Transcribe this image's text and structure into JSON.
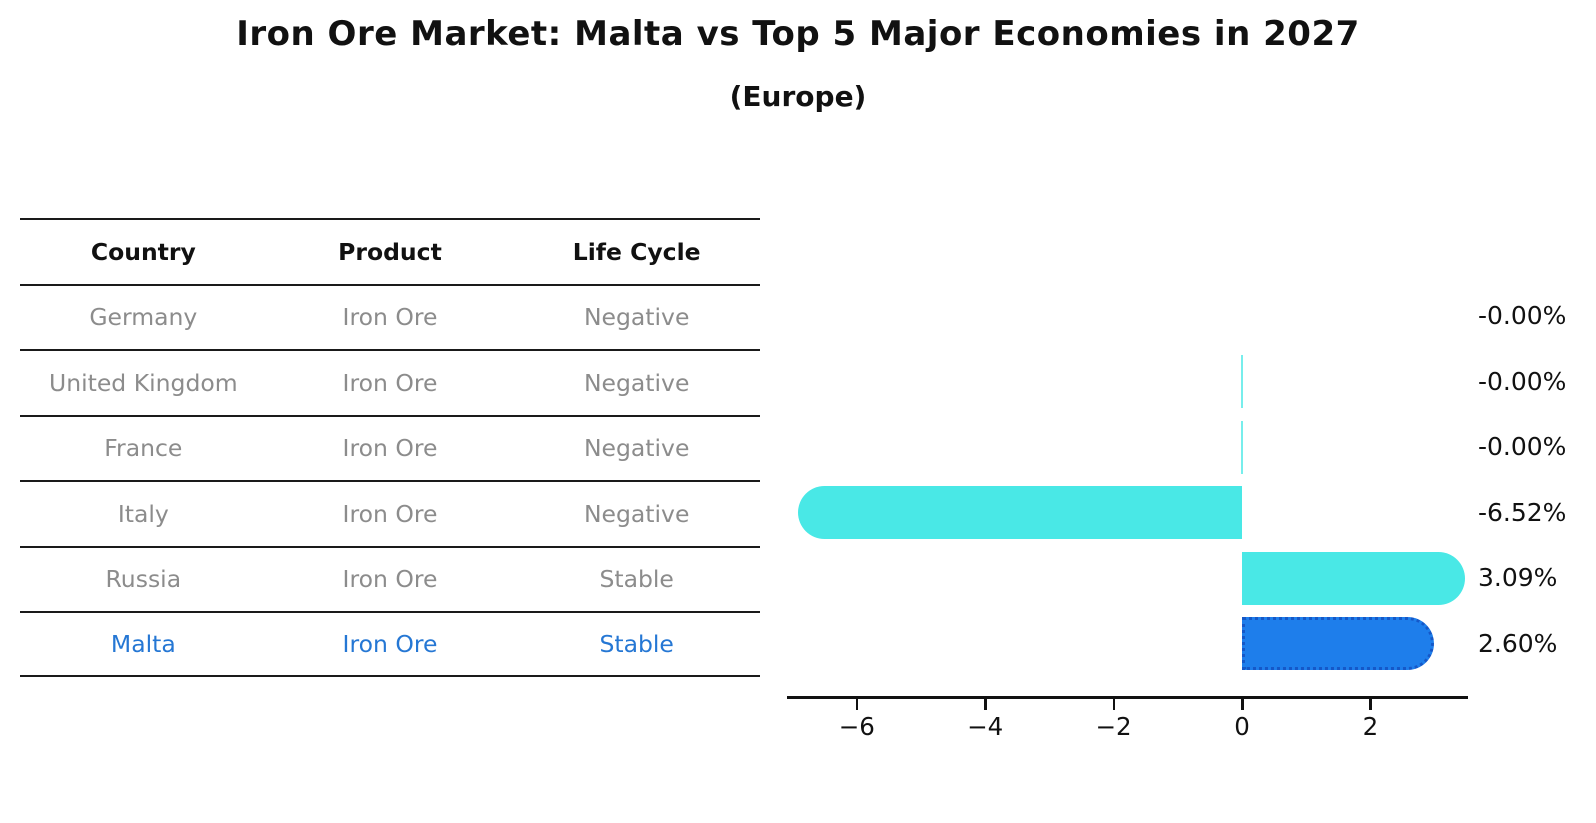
{
  "title": "Iron Ore Market: Malta vs Top 5 Major Economies in 2027",
  "subtitle": "(Europe)",
  "table": {
    "headers": [
      "Country",
      "Product",
      "Life Cycle"
    ],
    "rows": [
      {
        "country": "Germany",
        "product": "Iron Ore",
        "life_cycle": "Negative",
        "highlight": false
      },
      {
        "country": "United Kingdom",
        "product": "Iron Ore",
        "life_cycle": "Negative",
        "highlight": false
      },
      {
        "country": "France",
        "product": "Iron Ore",
        "life_cycle": "Negative",
        "highlight": false
      },
      {
        "country": "Italy",
        "product": "Iron Ore",
        "life_cycle": "Negative",
        "highlight": false
      },
      {
        "country": "Russia",
        "product": "Iron Ore",
        "life_cycle": "Stable",
        "highlight": false
      },
      {
        "country": "Malta",
        "product": "Iron Ore",
        "life_cycle": "Stable",
        "highlight": true
      }
    ]
  },
  "chart_data": {
    "type": "bar",
    "orientation": "horizontal",
    "title": "Iron Ore Market: Malta vs Top 5 Major Economies in 2027",
    "subtitle": "(Europe)",
    "categories": [
      "Germany",
      "United Kingdom",
      "France",
      "Italy",
      "Russia",
      "Malta"
    ],
    "values": [
      -0.0,
      -0.0,
      -0.0,
      -6.52,
      3.09,
      2.6
    ],
    "value_labels": [
      "-0.00%",
      "-0.00%",
      "-0.00%",
      "-6.52%",
      "3.09%",
      "2.60%"
    ],
    "bar_visible": [
      false,
      true,
      true,
      true,
      true,
      true
    ],
    "highlight_index": 5,
    "x_ticks": [
      -6,
      -4,
      -2,
      0,
      2
    ],
    "x_tick_labels": [
      "−6",
      "−4",
      "−2",
      "0",
      "2"
    ],
    "xlim": [
      -7.1,
      3.55
    ],
    "grid": false,
    "legend": "none",
    "colors": {
      "bar": "#49e8e6",
      "highlight_bar": "#1e7eeb",
      "highlight_border": "#1558c8",
      "highlight_text": "#2577d4",
      "table_text": "#8c8c8c",
      "text": "#111111"
    }
  }
}
